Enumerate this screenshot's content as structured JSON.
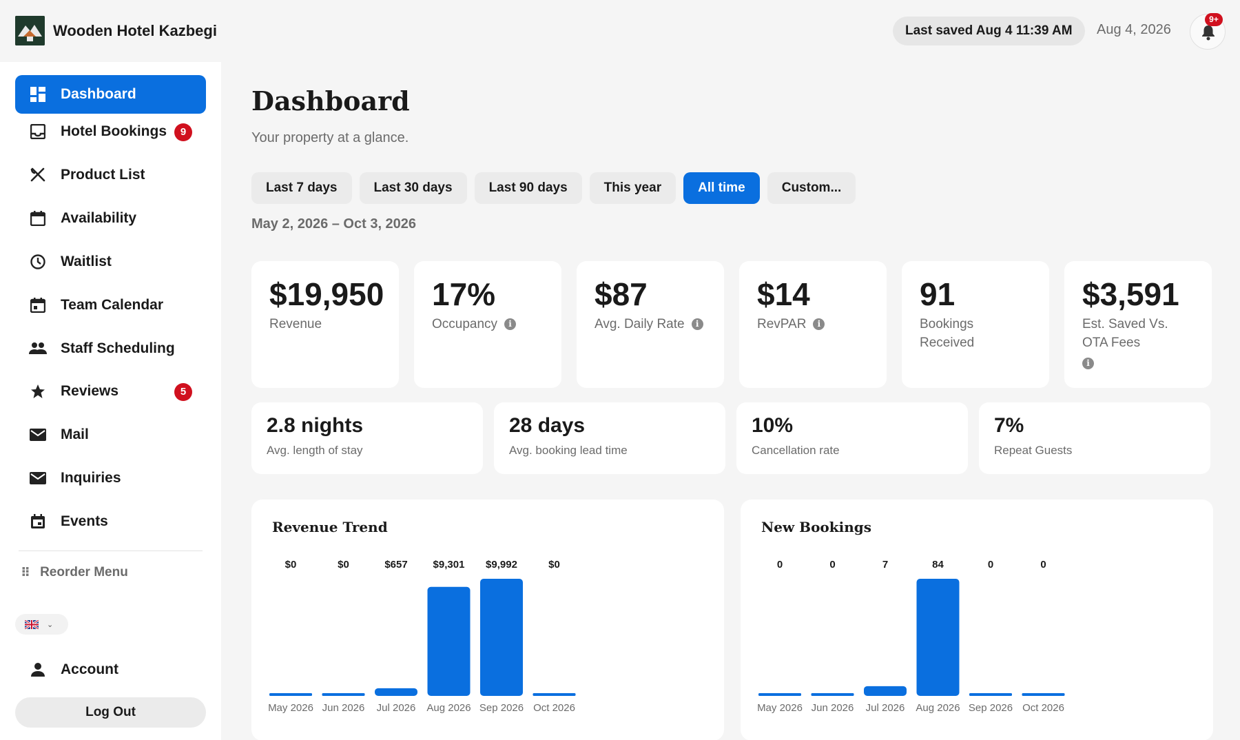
{
  "app": {
    "name": "Wooden Hotel Kazbegi",
    "last_saved": "Last saved Aug 4 11:39 AM",
    "date": "Aug 4, 2026",
    "notifications_badge": "9+"
  },
  "sidebar": {
    "items": [
      {
        "label": "Dashboard",
        "icon": "dashboard-icon",
        "active": true
      },
      {
        "label": "Hotel Bookings",
        "icon": "inbox-icon",
        "badge": "9"
      },
      {
        "label": "Product List",
        "icon": "utensils-icon"
      },
      {
        "label": "Availability",
        "icon": "calendar-icon"
      },
      {
        "label": "Waitlist",
        "icon": "clock-icon"
      },
      {
        "label": "Team Calendar",
        "icon": "calendar-icon"
      },
      {
        "label": "Staff Scheduling",
        "icon": "people-icon"
      },
      {
        "label": "Reviews",
        "icon": "star-icon",
        "badge": "5"
      },
      {
        "label": "Mail",
        "icon": "mail-icon"
      },
      {
        "label": "Inquiries",
        "icon": "mail-icon"
      },
      {
        "label": "Events",
        "icon": "event-icon"
      }
    ],
    "reorder_label": "Reorder Menu",
    "account_label": "Account",
    "logout_label": "Log Out",
    "language_icon": "uk-flag-icon"
  },
  "main": {
    "title": "Dashboard",
    "subtitle": "Your property at a glance.",
    "ranges": [
      "Last 7 days",
      "Last 30 days",
      "Last 90 days",
      "This year",
      "All time",
      "Custom..."
    ],
    "active_range": "All time",
    "date_range": "May 2, 2026 – Oct 3, 2026",
    "kpis": [
      {
        "value": "$19,950",
        "label": "Revenue"
      },
      {
        "value": "17%",
        "label": "Occupancy",
        "info": true
      },
      {
        "value": "$87",
        "label": "Avg. Daily Rate",
        "info": true
      },
      {
        "value": "$14",
        "label": "RevPAR",
        "info": true
      },
      {
        "value": "91",
        "label": "Bookings Received"
      },
      {
        "value": "$3,591",
        "label": "Est. Saved Vs. OTA Fees",
        "info": true
      }
    ],
    "stats": [
      {
        "value": "2.8 nights",
        "label": "Avg. length of stay"
      },
      {
        "value": "28 days",
        "label": "Avg. booking lead time"
      },
      {
        "value": "10%",
        "label": "Cancellation rate"
      },
      {
        "value": "7%",
        "label": "Repeat Guests"
      }
    ]
  },
  "colors": {
    "accent": "#0a6fdf",
    "badge": "#d0101e",
    "bar": "#0a6fdf"
  },
  "chart_data": [
    {
      "type": "bar",
      "title": "Revenue Trend",
      "categories": [
        "May 2026",
        "Jun 2026",
        "Jul 2026",
        "Aug 2026",
        "Sep 2026",
        "Oct 2026"
      ],
      "values": [
        0,
        0,
        657,
        9301,
        9992,
        0
      ],
      "value_labels": [
        "$0",
        "$0",
        "$657",
        "$9,301",
        "$9,992",
        "$0"
      ],
      "grid": false
    },
    {
      "type": "bar",
      "title": "New Bookings",
      "categories": [
        "May 2026",
        "Jun 2026",
        "Jul 2026",
        "Aug 2026",
        "Sep 2026",
        "Oct 2026"
      ],
      "values": [
        0,
        0,
        7,
        84,
        0,
        0
      ],
      "value_labels": [
        "0",
        "0",
        "7",
        "84",
        "0",
        "0"
      ],
      "grid": false
    }
  ]
}
